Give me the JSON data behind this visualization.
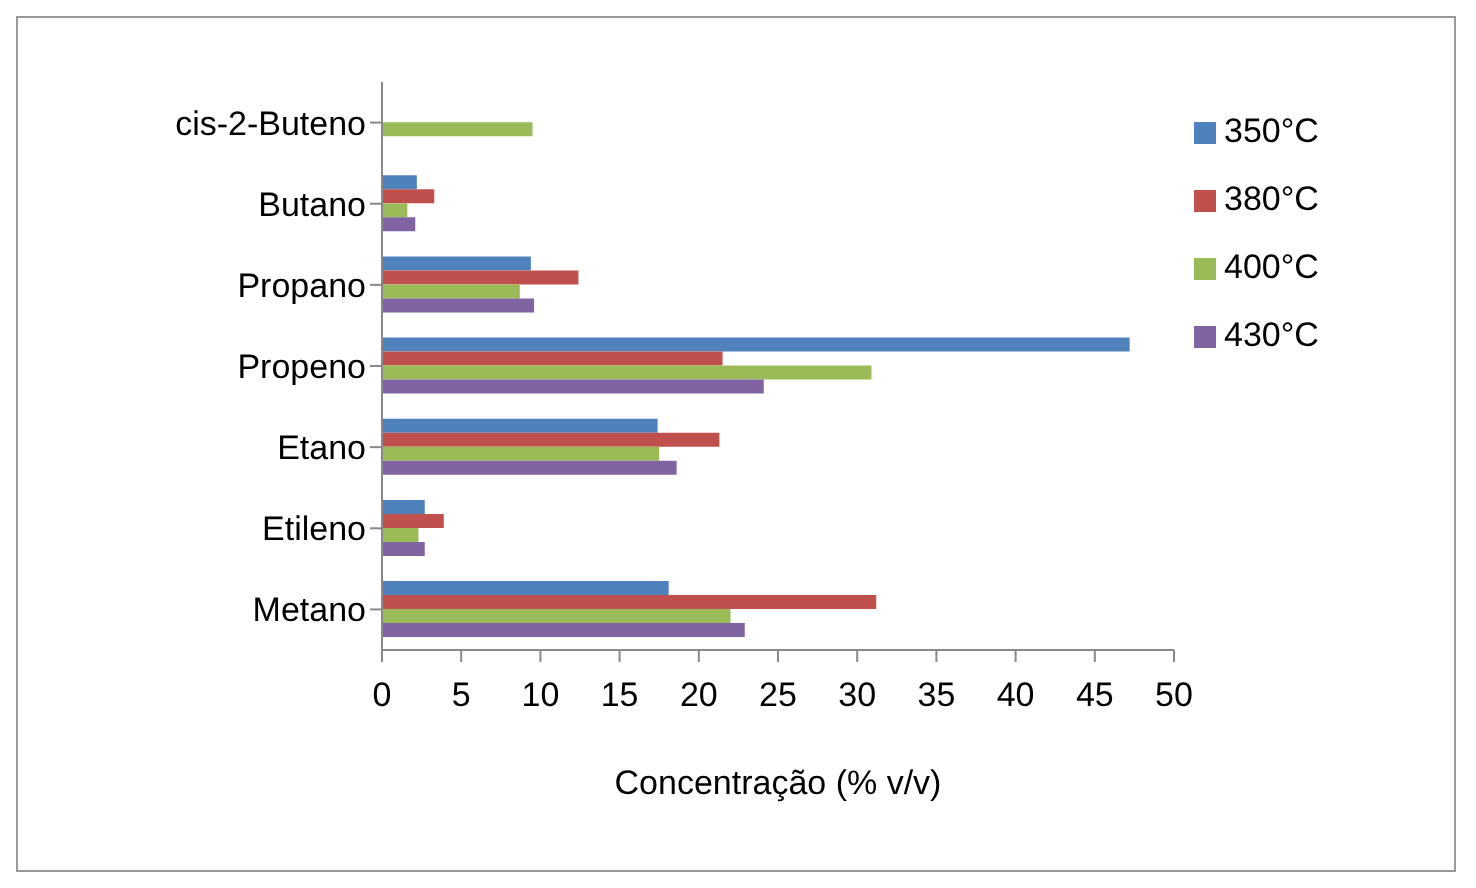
{
  "chart_data": {
    "type": "bar",
    "orientation": "horizontal",
    "xlabel": "Concentração (% v/v)",
    "categories": [
      "cis-2-Buteno",
      "Butano",
      "Propano",
      "Propeno",
      "Etano",
      "Etileno",
      "Metano"
    ],
    "series": [
      {
        "name": "350°C",
        "color": "#4f81bd",
        "values": [
          null,
          2.2,
          9.4,
          47.2,
          17.4,
          2.7,
          18.1
        ]
      },
      {
        "name": "380°C",
        "color": "#c0504d",
        "values": [
          null,
          3.3,
          12.4,
          21.5,
          21.3,
          3.9,
          31.2
        ]
      },
      {
        "name": "400°C",
        "color": "#9bbb59",
        "values": [
          9.5,
          1.6,
          8.7,
          30.9,
          17.5,
          2.3,
          22.0
        ]
      },
      {
        "name": "430°C",
        "color": "#8064a2",
        "values": [
          null,
          2.1,
          9.6,
          24.1,
          18.6,
          2.7,
          22.9
        ]
      }
    ],
    "xlim": [
      0,
      50
    ],
    "xticks": [
      0,
      5,
      10,
      15,
      20,
      25,
      30,
      35,
      40,
      45,
      50
    ],
    "grid": false,
    "legend": "right"
  }
}
